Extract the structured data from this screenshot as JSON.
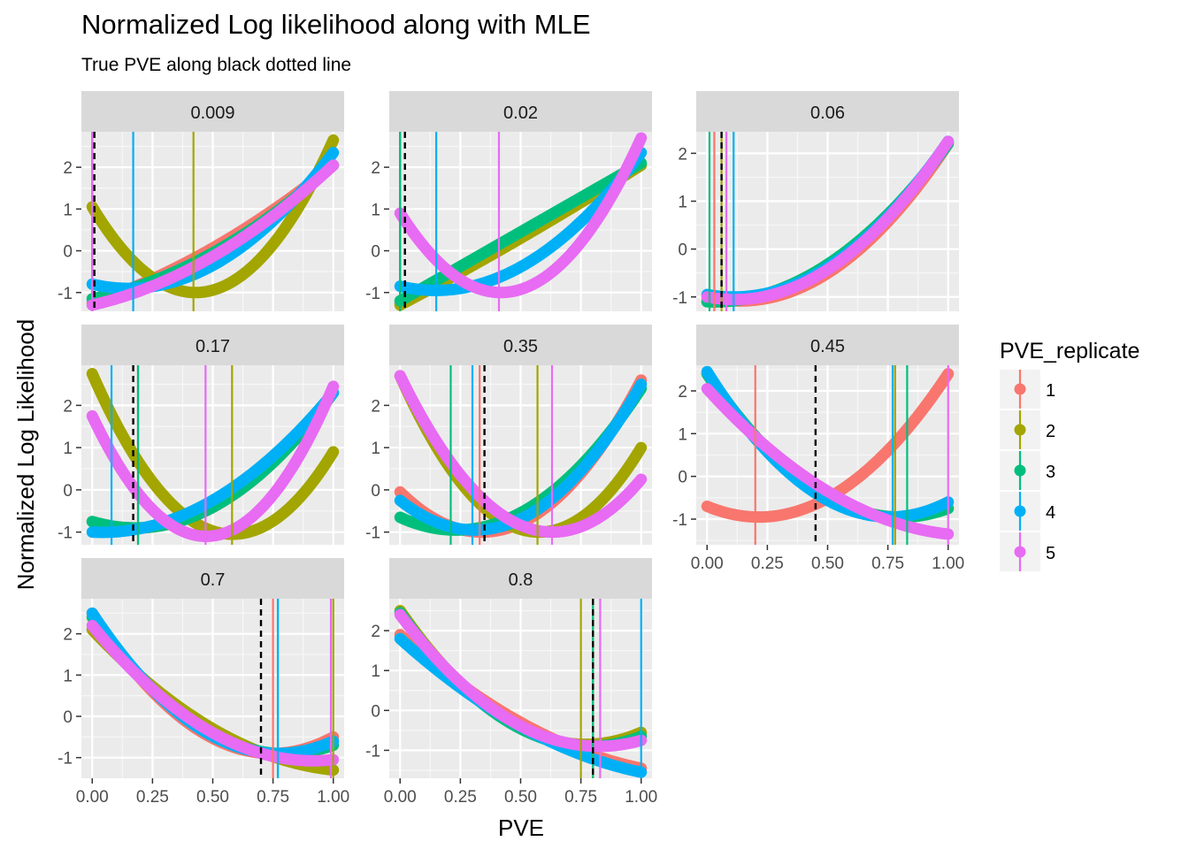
{
  "chart_data": {
    "type": "line",
    "title": "Normalized Log likelihood along with MLE",
    "subtitle": "True PVE along black dotted line",
    "xlabel": "PVE",
    "ylabel": "Normalized Log Likelihood",
    "xlim": [
      0,
      1
    ],
    "x_ticks": [
      "0.00",
      "0.25",
      "0.50",
      "0.75",
      "1.00"
    ],
    "grid": true,
    "legend": {
      "title": "PVE_replicate",
      "placement": "right",
      "entries": [
        "1",
        "2",
        "3",
        "4",
        "5"
      ]
    },
    "series_colors": {
      "1": "#F8766D",
      "2": "#A3A500",
      "3": "#00BF7D",
      "4": "#00B0F6",
      "5": "#E76BF3"
    },
    "panels": [
      {
        "label": "0.009",
        "true_pve": 0.009,
        "ylim": [
          -1.45,
          2.85
        ],
        "y_ticks": [
          "-1",
          "0",
          "1",
          "2"
        ],
        "series": [
          {
            "replicate": "1",
            "curve": [
              [
                0,
                -1.25
              ],
              [
                0.4,
                -0.25
              ],
              [
                1,
                2.05
              ]
            ],
            "mle": 0.0
          },
          {
            "replicate": "2",
            "curve": [
              [
                0,
                1.05
              ],
              [
                0.42,
                -1.0
              ],
              [
                1,
                2.65
              ]
            ],
            "mle": 0.42
          },
          {
            "replicate": "3",
            "curve": [
              [
                0,
                -1.15
              ],
              [
                0.4,
                -0.35
              ],
              [
                1,
                2.05
              ]
            ],
            "mle": 0.0
          },
          {
            "replicate": "4",
            "curve": [
              [
                0,
                -0.8
              ],
              [
                0.17,
                -0.9
              ],
              [
                1,
                2.35
              ]
            ],
            "mle": 0.17
          },
          {
            "replicate": "5",
            "curve": [
              [
                0,
                -1.3
              ],
              [
                0.4,
                -0.45
              ],
              [
                1,
                2.05
              ]
            ],
            "mle": 0.0
          }
        ]
      },
      {
        "label": "0.02",
        "true_pve": 0.02,
        "ylim": [
          -1.45,
          2.85
        ],
        "y_ticks": [
          "-1",
          "0",
          "1",
          "2"
        ],
        "series": [
          {
            "replicate": "1",
            "curve": [
              [
                0,
                -1.25
              ],
              [
                0.5,
                0.4
              ],
              [
                1,
                2.05
              ]
            ],
            "mle": 0.0
          },
          {
            "replicate": "2",
            "curve": [
              [
                0,
                -1.3
              ],
              [
                0.5,
                0.3
              ],
              [
                1,
                2.05
              ]
            ],
            "mle": 0.0
          },
          {
            "replicate": "3",
            "curve": [
              [
                0,
                -1.2
              ],
              [
                0.5,
                0.45
              ],
              [
                1,
                2.1
              ]
            ],
            "mle": 0.0
          },
          {
            "replicate": "4",
            "curve": [
              [
                0,
                -0.85
              ],
              [
                0.15,
                -0.95
              ],
              [
                1,
                2.35
              ]
            ],
            "mle": 0.15
          },
          {
            "replicate": "5",
            "curve": [
              [
                0,
                0.9
              ],
              [
                0.41,
                -1.0
              ],
              [
                1,
                2.7
              ]
            ],
            "mle": 0.41
          }
        ]
      },
      {
        "label": "0.06",
        "true_pve": 0.06,
        "ylim": [
          -1.3,
          2.45
        ],
        "y_ticks": [
          "-1",
          "0",
          "1",
          "2"
        ],
        "series": [
          {
            "replicate": "1",
            "curve": [
              [
                0,
                -1.0
              ],
              [
                0.05,
                -1.05
              ],
              [
                1,
                2.2
              ]
            ],
            "mle": 0.03
          },
          {
            "replicate": "2",
            "curve": [
              [
                0,
                -1.1
              ],
              [
                0.06,
                -1.1
              ],
              [
                1,
                2.2
              ]
            ],
            "mle": 0.06
          },
          {
            "replicate": "3",
            "curve": [
              [
                0,
                -1.1
              ],
              [
                0.05,
                -1.1
              ],
              [
                1,
                2.2
              ]
            ],
            "mle": 0.01
          },
          {
            "replicate": "4",
            "curve": [
              [
                0,
                -0.95
              ],
              [
                0.1,
                -1.0
              ],
              [
                1,
                2.25
              ]
            ],
            "mle": 0.11
          },
          {
            "replicate": "5",
            "curve": [
              [
                0,
                -1.0
              ],
              [
                0.08,
                -1.05
              ],
              [
                1,
                2.25
              ]
            ],
            "mle": 0.08
          }
        ]
      },
      {
        "label": "0.17",
        "true_pve": 0.17,
        "ylim": [
          -1.3,
          2.95
        ],
        "y_ticks": [
          "-1",
          "0",
          "1",
          "2"
        ],
        "series": [
          {
            "replicate": "1",
            "curve": [
              [
                0,
                -0.75
              ],
              [
                0.2,
                -0.9
              ],
              [
                1,
                2.3
              ]
            ],
            "mle": 0.19
          },
          {
            "replicate": "2",
            "curve": [
              [
                0,
                2.75
              ],
              [
                0.58,
                -1.05
              ],
              [
                1,
                0.9
              ]
            ],
            "mle": 0.58
          },
          {
            "replicate": "3",
            "curve": [
              [
                0,
                -0.75
              ],
              [
                0.2,
                -0.9
              ],
              [
                1,
                2.3
              ]
            ],
            "mle": 0.19
          },
          {
            "replicate": "4",
            "curve": [
              [
                0,
                -1.0
              ],
              [
                0.08,
                -1.0
              ],
              [
                1,
                2.3
              ]
            ],
            "mle": 0.08
          },
          {
            "replicate": "5",
            "curve": [
              [
                0,
                1.75
              ],
              [
                0.47,
                -1.1
              ],
              [
                1,
                2.45
              ]
            ],
            "mle": 0.47
          }
        ]
      },
      {
        "label": "0.35",
        "true_pve": 0.35,
        "ylim": [
          -1.3,
          2.95
        ],
        "y_ticks": [
          "-1",
          "0",
          "1",
          "2"
        ],
        "series": [
          {
            "replicate": "1",
            "curve": [
              [
                0,
                -0.05
              ],
              [
                0.33,
                -1.0
              ],
              [
                1,
                2.6
              ]
            ],
            "mle": 0.33
          },
          {
            "replicate": "2",
            "curve": [
              [
                0,
                2.7
              ],
              [
                0.57,
                -1.0
              ],
              [
                1,
                1.0
              ]
            ],
            "mle": 0.57
          },
          {
            "replicate": "3",
            "curve": [
              [
                0,
                -0.65
              ],
              [
                0.21,
                -0.95
              ],
              [
                1,
                2.4
              ]
            ],
            "mle": 0.21
          },
          {
            "replicate": "4",
            "curve": [
              [
                0,
                -0.25
              ],
              [
                0.3,
                -0.95
              ],
              [
                1,
                2.5
              ]
            ],
            "mle": 0.3
          },
          {
            "replicate": "5",
            "curve": [
              [
                0,
                2.7
              ],
              [
                0.63,
                -1.0
              ],
              [
                1,
                0.25
              ]
            ],
            "mle": 0.63
          }
        ]
      },
      {
        "label": "0.45",
        "true_pve": 0.45,
        "ylim": [
          -1.6,
          2.6
        ],
        "y_ticks": [
          "-1",
          "0",
          "1",
          "2"
        ],
        "series": [
          {
            "replicate": "1",
            "curve": [
              [
                0,
                -0.7
              ],
              [
                0.2,
                -0.95
              ],
              [
                1,
                2.4
              ]
            ],
            "mle": 0.2
          },
          {
            "replicate": "2",
            "curve": [
              [
                0,
                2.4
              ],
              [
                0.78,
                -0.95
              ],
              [
                1,
                -0.75
              ]
            ],
            "mle": 0.78
          },
          {
            "replicate": "3",
            "curve": [
              [
                0,
                2.4
              ],
              [
                0.83,
                -0.95
              ],
              [
                1,
                -0.75
              ]
            ],
            "mle": 0.83
          },
          {
            "replicate": "4",
            "curve": [
              [
                0,
                2.45
              ],
              [
                0.77,
                -0.95
              ],
              [
                1,
                -0.6
              ]
            ],
            "mle": 0.77
          },
          {
            "replicate": "5",
            "curve": [
              [
                0,
                2.05
              ],
              [
                0.5,
                -0.35
              ],
              [
                1,
                -1.35
              ]
            ],
            "mle": 1.0
          }
        ]
      },
      {
        "label": "0.7",
        "true_pve": 0.7,
        "ylim": [
          -1.5,
          2.85
        ],
        "y_ticks": [
          "-1",
          "0",
          "1",
          "2"
        ],
        "series": [
          {
            "replicate": "1",
            "curve": [
              [
                0,
                2.5
              ],
              [
                0.75,
                -0.9
              ],
              [
                1,
                -0.5
              ]
            ],
            "mle": 0.75
          },
          {
            "replicate": "2",
            "curve": [
              [
                0,
                2.1
              ],
              [
                0.5,
                -0.3
              ],
              [
                1,
                -1.3
              ]
            ],
            "mle": 1.0
          },
          {
            "replicate": "3",
            "curve": [
              [
                0,
                2.4
              ],
              [
                0.77,
                -0.9
              ],
              [
                1,
                -0.7
              ]
            ],
            "mle": 0.77
          },
          {
            "replicate": "4",
            "curve": [
              [
                0,
                2.5
              ],
              [
                0.77,
                -0.9
              ],
              [
                1,
                -0.6
              ]
            ],
            "mle": 0.77
          },
          {
            "replicate": "5",
            "curve": [
              [
                0,
                2.2
              ],
              [
                0.5,
                -0.4
              ],
              [
                1,
                -1.05
              ]
            ],
            "mle": 0.99
          }
        ]
      },
      {
        "label": "0.8",
        "true_pve": 0.8,
        "ylim": [
          -1.7,
          2.8
        ],
        "y_ticks": [
          "-1",
          "0",
          "1",
          "2"
        ],
        "series": [
          {
            "replicate": "1",
            "curve": [
              [
                0,
                1.9
              ],
              [
                0.5,
                -0.3
              ],
              [
                1,
                -1.45
              ]
            ],
            "mle": 0.8
          },
          {
            "replicate": "2",
            "curve": [
              [
                0,
                2.5
              ],
              [
                0.76,
                -0.85
              ],
              [
                1,
                -0.55
              ]
            ],
            "mle": 0.75
          },
          {
            "replicate": "3",
            "curve": [
              [
                0,
                2.45
              ],
              [
                0.8,
                -0.9
              ],
              [
                1,
                -0.65
              ]
            ],
            "mle": 0.8
          },
          {
            "replicate": "4",
            "curve": [
              [
                0,
                1.8
              ],
              [
                0.5,
                -0.4
              ],
              [
                1,
                -1.55
              ]
            ],
            "mle": 1.0
          },
          {
            "replicate": "5",
            "curve": [
              [
                0,
                2.4
              ],
              [
                0.83,
                -0.9
              ],
              [
                1,
                -0.75
              ]
            ],
            "mle": 0.83
          }
        ]
      }
    ]
  }
}
